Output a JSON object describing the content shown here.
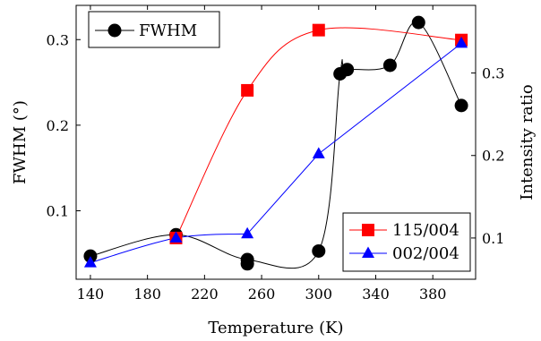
{
  "chart_data": {
    "type": "line",
    "xlabel": "Temperature (K)",
    "ylabel_left": "FWHM (°)",
    "ylabel_right": "Intensity ratio",
    "xlim": [
      130,
      410
    ],
    "ylim_left": [
      0.02,
      0.34
    ],
    "ylim_right": [
      0.05,
      0.382
    ],
    "x_ticks": [
      140,
      180,
      220,
      260,
      300,
      340,
      380
    ],
    "y_left_ticks": [
      0.1,
      0.2,
      0.3
    ],
    "y_right_ticks": [
      0.1,
      0.2,
      0.3
    ],
    "grid": false,
    "series": [
      {
        "name": "FWHM",
        "axis": "left",
        "color": "#000000",
        "marker": "circle",
        "x": [
          140,
          200,
          250,
          250,
          300,
          315,
          320,
          350,
          370,
          400
        ],
        "y": [
          0.047,
          0.072,
          0.043,
          0.038,
          0.053,
          0.26,
          0.265,
          0.27,
          0.32,
          0.223
        ]
      },
      {
        "name": "115/004",
        "axis": "right",
        "color": "#ff0000",
        "marker": "square",
        "x": [
          200,
          250,
          300,
          400
        ],
        "y": [
          0.1,
          0.279,
          0.352,
          0.34
        ]
      },
      {
        "name": "002/004",
        "axis": "right",
        "color": "#0000ff",
        "marker": "triangle",
        "x": [
          140,
          200,
          250,
          300,
          400
        ],
        "y": [
          0.07,
          0.1,
          0.105,
          0.202,
          0.336
        ]
      }
    ],
    "legends": [
      {
        "placement": "top-left",
        "entries": [
          "FWHM"
        ]
      },
      {
        "placement": "bottom-right",
        "entries": [
          "115/004",
          "002/004"
        ]
      }
    ]
  }
}
